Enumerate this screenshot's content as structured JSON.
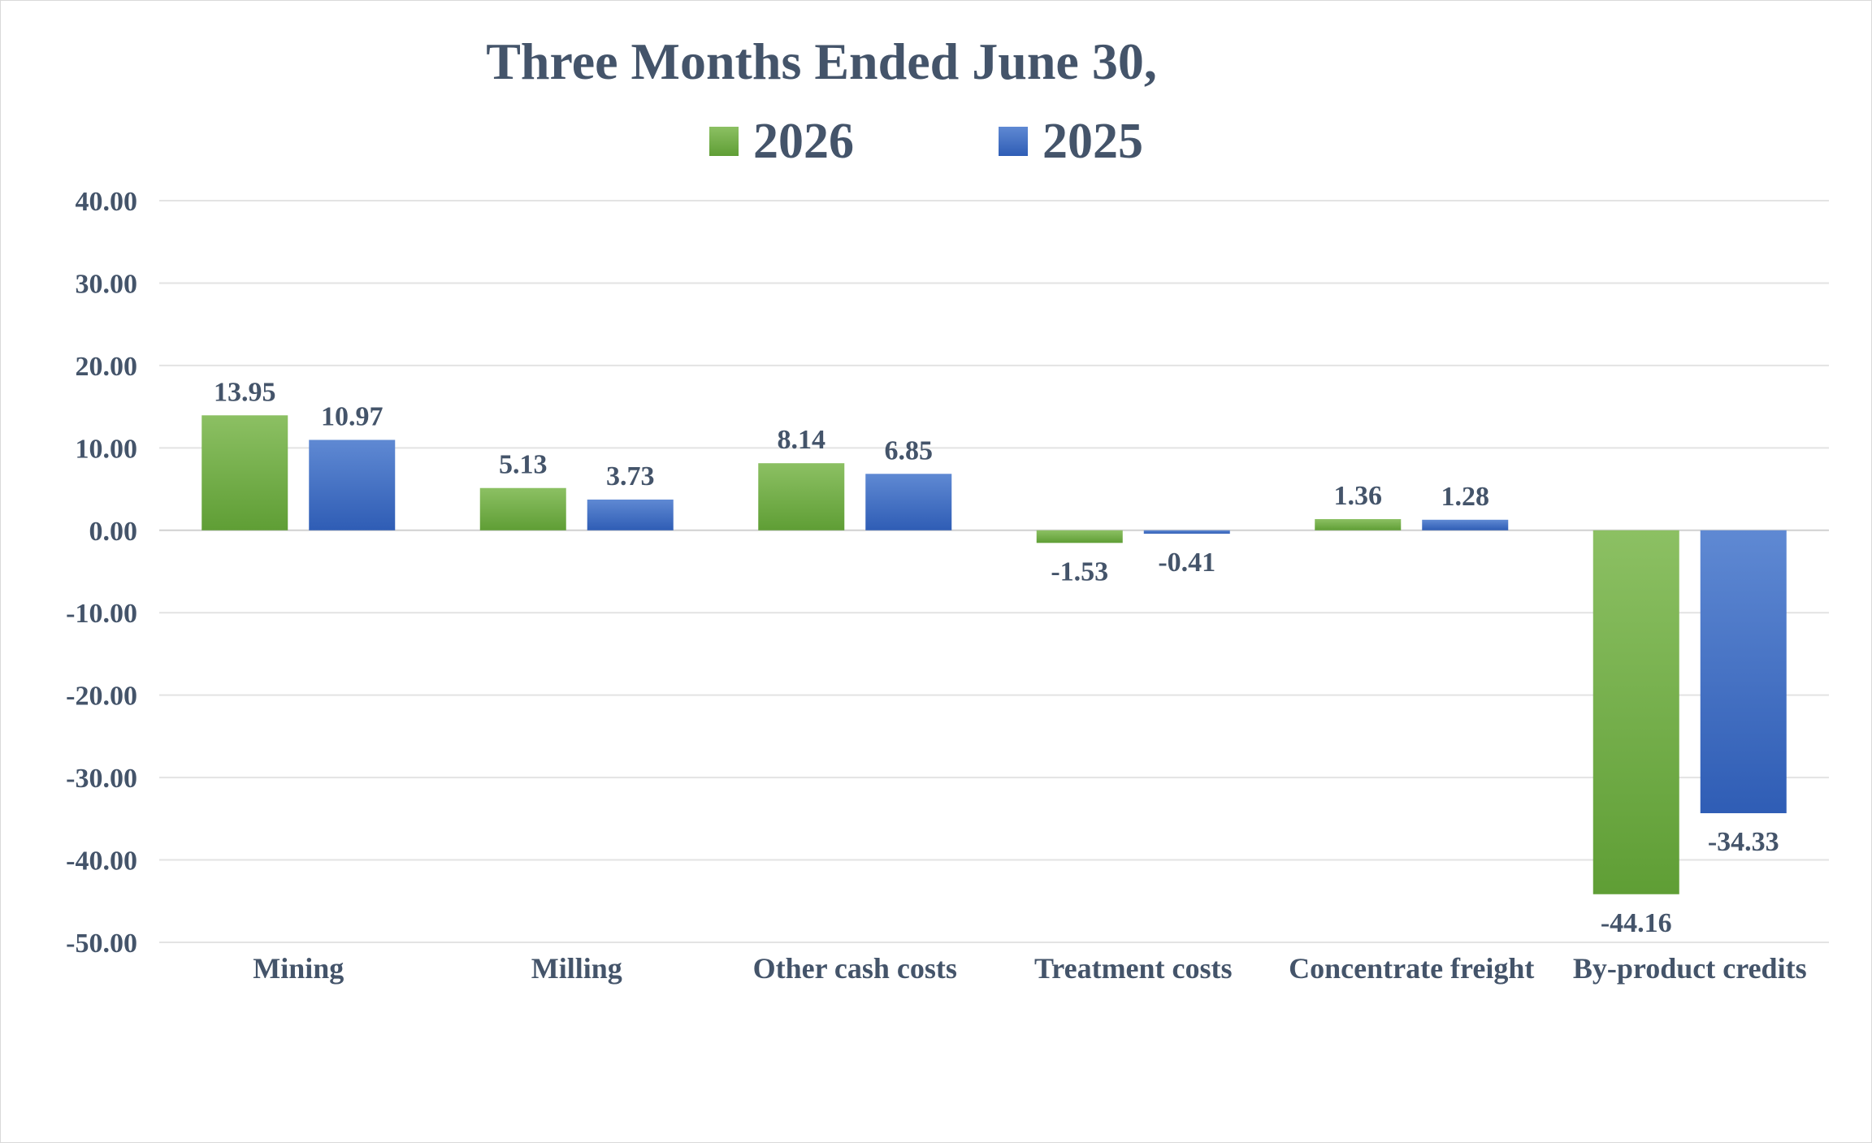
{
  "chart_data": {
    "type": "bar",
    "title": "Three Months Ended June 30,",
    "categories": [
      "Mining",
      "Milling",
      "Other cash costs",
      "Treatment costs",
      "Concentrate freight",
      "By-product credits"
    ],
    "series": [
      {
        "name": "2026",
        "values": [
          13.95,
          5.13,
          8.14,
          -1.53,
          1.36,
          -44.16
        ],
        "labels": [
          "13.95",
          "5.13",
          "8.14",
          "-1.53",
          "1.36",
          "-44.16"
        ],
        "color": "#70ad47",
        "color_light": "#8cc063",
        "color_dark": "#5f9e35"
      },
      {
        "name": "2025",
        "values": [
          10.97,
          3.73,
          6.85,
          -0.41,
          1.28,
          -34.33
        ],
        "labels": [
          "10.97",
          "3.73",
          "6.85",
          "-0.41",
          "1.28",
          "-34.33"
        ],
        "color": "#4472c4",
        "color_light": "#5f89d3",
        "color_dark": "#2f5db5"
      }
    ],
    "yticks": [
      "40.00",
      "30.00",
      "20.00",
      "10.00",
      "0.00",
      "-10.00",
      "-20.00",
      "-30.00",
      "-40.00",
      "-50.00"
    ],
    "ylim": [
      -50,
      40
    ],
    "xlabel": "",
    "ylabel": "",
    "grid": true,
    "legend_position": "top"
  }
}
